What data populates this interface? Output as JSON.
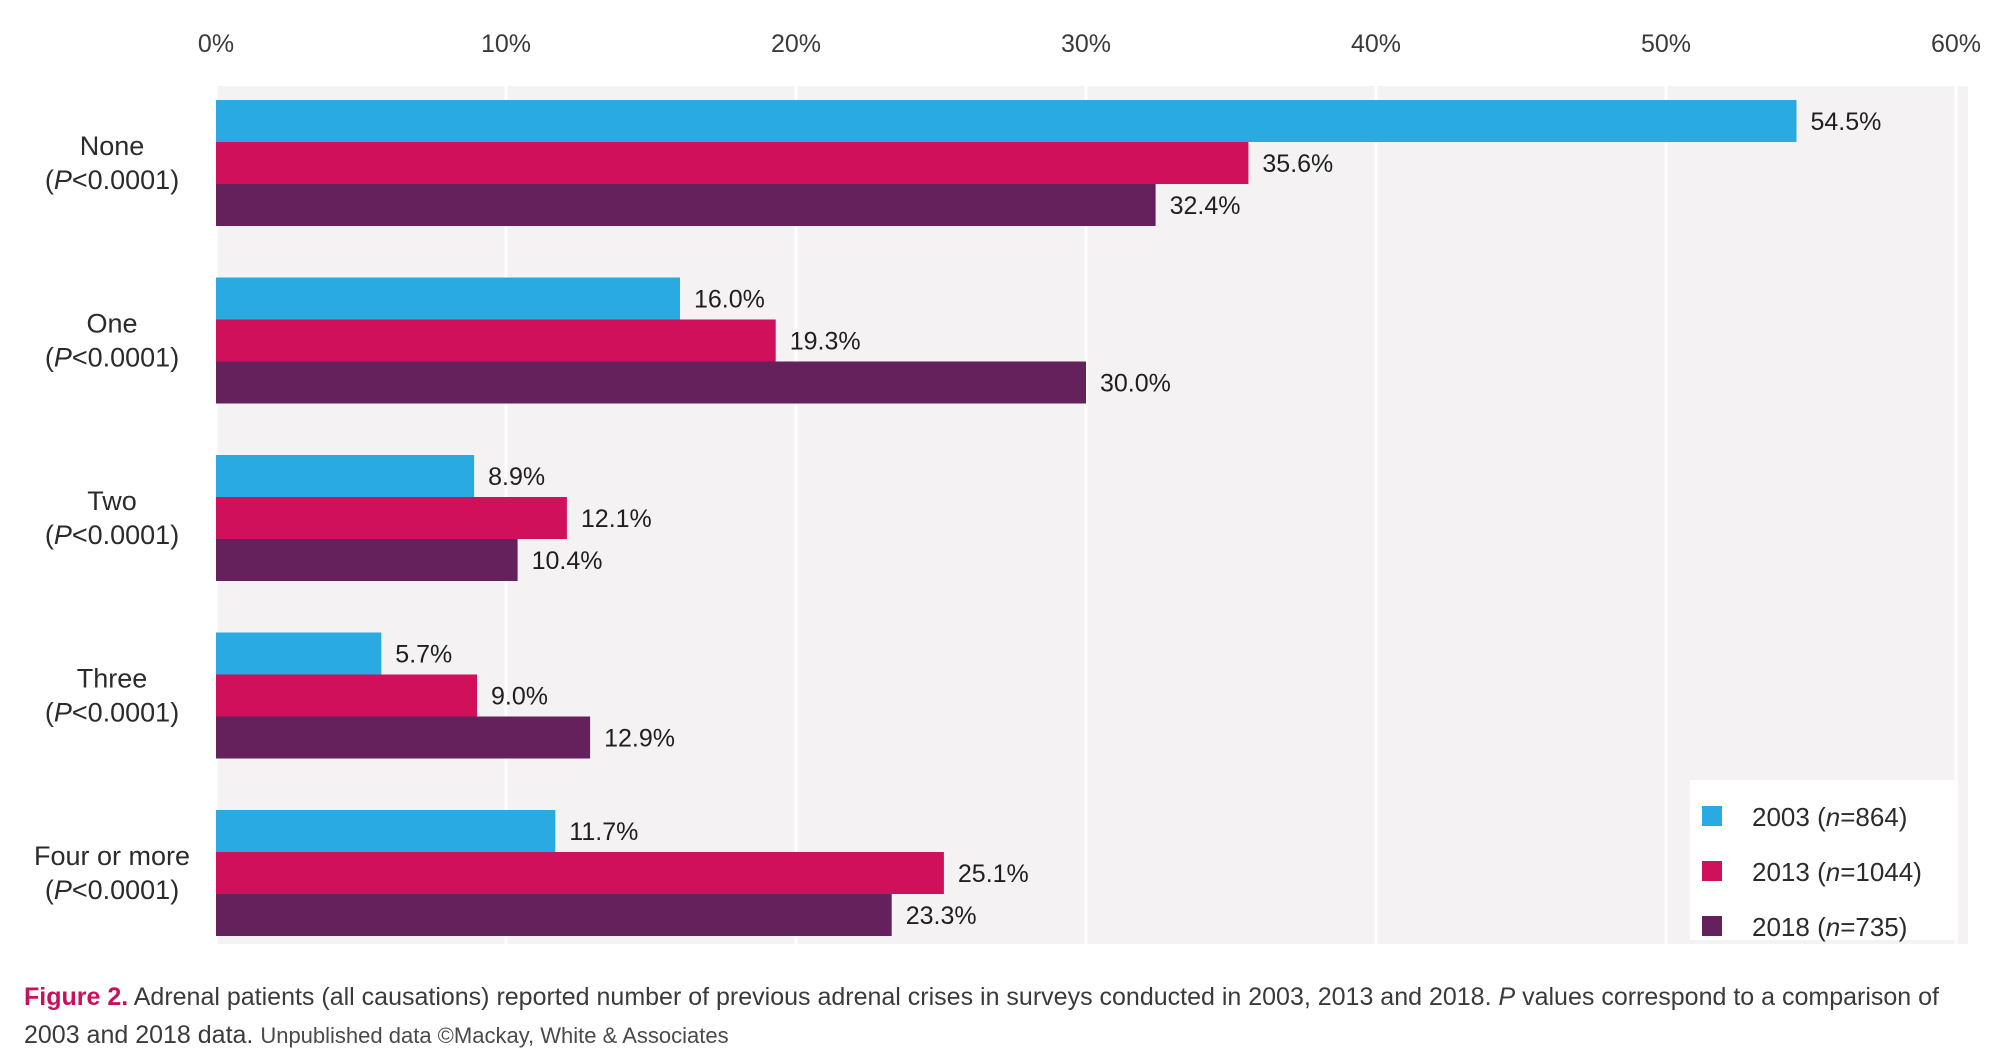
{
  "chart_data": {
    "type": "bar",
    "orientation": "horizontal",
    "categories": [
      {
        "label": "None",
        "p_label": "P<0.0001"
      },
      {
        "label": "One",
        "p_label": "P<0.0001"
      },
      {
        "label": "Two",
        "p_label": "P<0.0001"
      },
      {
        "label": "Three",
        "p_label": "P<0.0001"
      },
      {
        "label": "Four or more",
        "p_label": "P<0.0001"
      }
    ],
    "series": [
      {
        "name": "2003 (n=864)",
        "year": "2003",
        "n_text": "n=864",
        "color": "#29abe2",
        "values": [
          54.5,
          16.0,
          8.9,
          5.7,
          11.7
        ],
        "labels": [
          "54.5%",
          "16.0%",
          "8.9%",
          "5.7%",
          "11.7%"
        ]
      },
      {
        "name": "2013 (n=1044)",
        "year": "2013",
        "n_text": "n=1044",
        "color": "#d0105b",
        "values": [
          35.6,
          19.3,
          12.1,
          9.0,
          25.1
        ],
        "labels": [
          "35.6%",
          "19.3%",
          "12.1%",
          "9.0%",
          "25.1%"
        ]
      },
      {
        "name": "2018 (n=735)",
        "year": "2018",
        "n_text": "n=735",
        "color": "#64215b",
        "values": [
          32.4,
          30.0,
          10.4,
          12.9,
          23.3
        ],
        "labels": [
          "32.4%",
          "30.0%",
          "10.4%",
          "12.9%",
          "23.3%"
        ]
      }
    ],
    "xlim": [
      0,
      60
    ],
    "xticks": [
      0,
      10,
      20,
      30,
      40,
      50,
      60
    ],
    "xtick_labels": [
      "0%",
      "10%",
      "20%",
      "30%",
      "40%",
      "50%",
      "60%"
    ],
    "xaxis_position": "top",
    "grid": true,
    "legend_position": "bottom-right",
    "plot_background": "#f4f2f3"
  },
  "caption": {
    "figure_label": "Figure 2.",
    "text": " Adrenal patients (all causations) reported number of previous adrenal crises in surveys conducted in 2003, 2013 and 2018. ",
    "p_italic": "P",
    "text2": " values correspond to a comparison of 2003 and 2018 data. ",
    "source": "Unpublished data ©Mackay, White & Associates"
  }
}
